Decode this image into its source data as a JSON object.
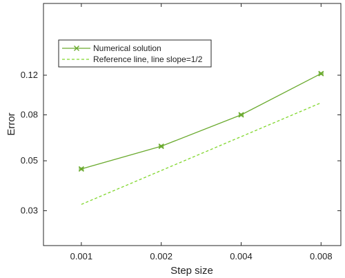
{
  "chart_data": {
    "type": "line",
    "xlabel": "Step size",
    "ylabel": "Error",
    "xscale": "log2",
    "yscale": "log",
    "x_ticks": [
      0.001,
      0.002,
      0.004,
      0.008
    ],
    "x_tick_labels": [
      "0.001",
      "0.002",
      "0.004",
      "0.008"
    ],
    "y_ticks": [
      0.03,
      0.05,
      0.08,
      0.12
    ],
    "y_tick_labels": [
      "0.03",
      "0.05",
      "0.08",
      "0.12"
    ],
    "xlim": [
      0.00072,
      0.0095
    ],
    "ylim": [
      0.021,
      0.25
    ],
    "grid": false,
    "legend_position": "top-left",
    "series": [
      {
        "name": "Numerical solution",
        "style": "solid",
        "marker": "x",
        "color": "#6aaa2e",
        "x": [
          0.001,
          0.002,
          0.004,
          0.008
        ],
        "y": [
          0.046,
          0.058,
          0.08,
          0.122
        ]
      },
      {
        "name": "Reference line, line slope=1/2",
        "style": "dashed",
        "marker": "none",
        "color": "#7fd62a",
        "x": [
          0.001,
          0.008
        ],
        "y": [
          0.032,
          0.0905
        ]
      }
    ]
  }
}
